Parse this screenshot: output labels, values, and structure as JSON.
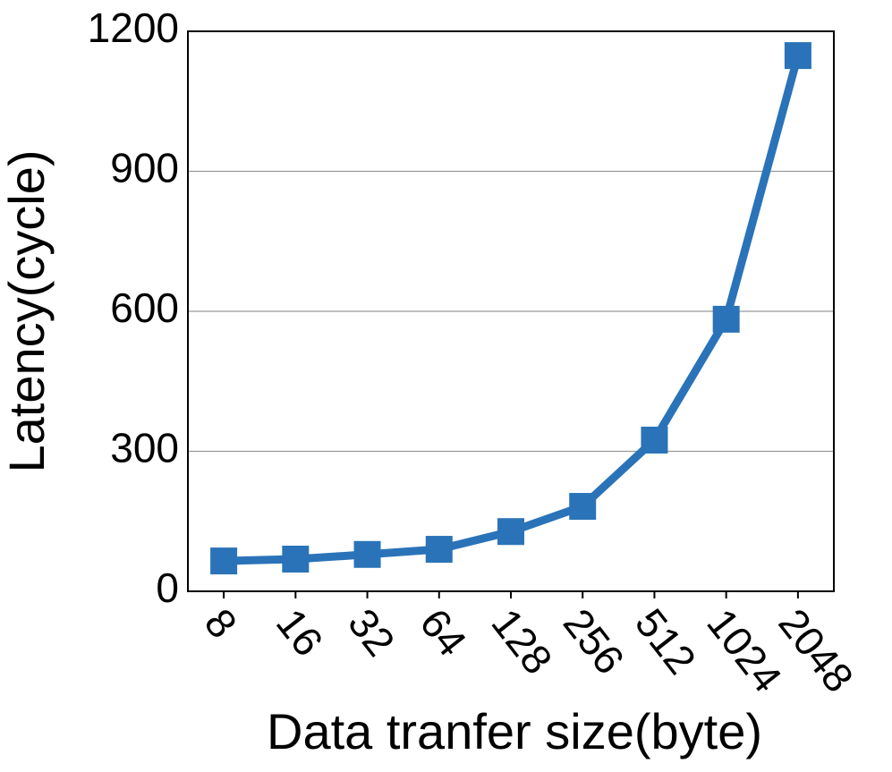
{
  "chart_data": {
    "type": "line",
    "x_label": "Data tranfer size(byte)",
    "y_label": "Latency(cycle)",
    "categories": [
      "8",
      "16",
      "32",
      "64",
      "128",
      "256",
      "512",
      "1024",
      "2048"
    ],
    "series": [
      {
        "name": "Latency",
        "color": "#2a73b8",
        "values": [
          65,
          69,
          79,
          90,
          128,
          182,
          324,
          583,
          1148
        ]
      }
    ],
    "ylim": [
      0,
      1200
    ],
    "yticks": [
      0,
      300,
      600,
      900,
      1200
    ],
    "grid": true
  }
}
